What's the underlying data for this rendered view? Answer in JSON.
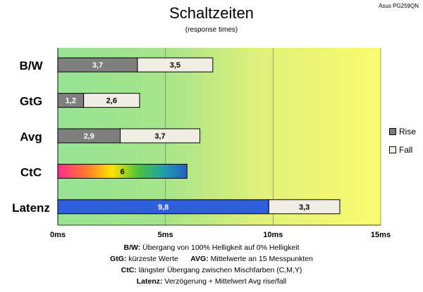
{
  "chart_data": {
    "type": "bar",
    "orientation": "horizontal",
    "stacked": true,
    "title": "Schaltzeiten",
    "subtitle": "(response times)",
    "model": "Asus PG259QN",
    "categories": [
      "B/W",
      "GtG",
      "Avg",
      "CtC",
      "Latenz"
    ],
    "series": [
      {
        "name": "Rise",
        "values": [
          3.7,
          1.2,
          2.9,
          6,
          9.8
        ]
      },
      {
        "name": "Fall",
        "values": [
          3.5,
          2.6,
          3.7,
          null,
          3.3
        ]
      }
    ],
    "xlim": [
      0,
      15
    ],
    "xticks": [
      0,
      5,
      10,
      15
    ],
    "xtick_labels": [
      "0ms",
      "5ms",
      "10ms",
      "15ms"
    ],
    "grid": true,
    "legend_position": "right",
    "colors": {
      "rise": "#7f7f7f",
      "fall": "#efede4",
      "latenz": "#2f5fde",
      "bg_green": "#96e494",
      "bg_yellow": "#fbfb6e"
    }
  },
  "footnotes": [
    {
      "parts": [
        {
          "b": "B/W:",
          "t": " Übergang von 100% Helligkeit auf 0% Helligkeit"
        }
      ]
    },
    {
      "parts": [
        {
          "b": "GtG:",
          "t": " kürzeste Werte      "
        },
        {
          "b": "AVG:",
          "t": " Mittelwerte an 15 Messpunkten"
        }
      ]
    },
    {
      "parts": [
        {
          "b": "CtC:",
          "t": " längster Übergang zwischen Mischfarben (C,M,Y)"
        }
      ]
    },
    {
      "parts": [
        {
          "b": "Latenz:",
          "t": " Verzögerung + Mittelwert Avg rise/fall"
        }
      ]
    }
  ]
}
